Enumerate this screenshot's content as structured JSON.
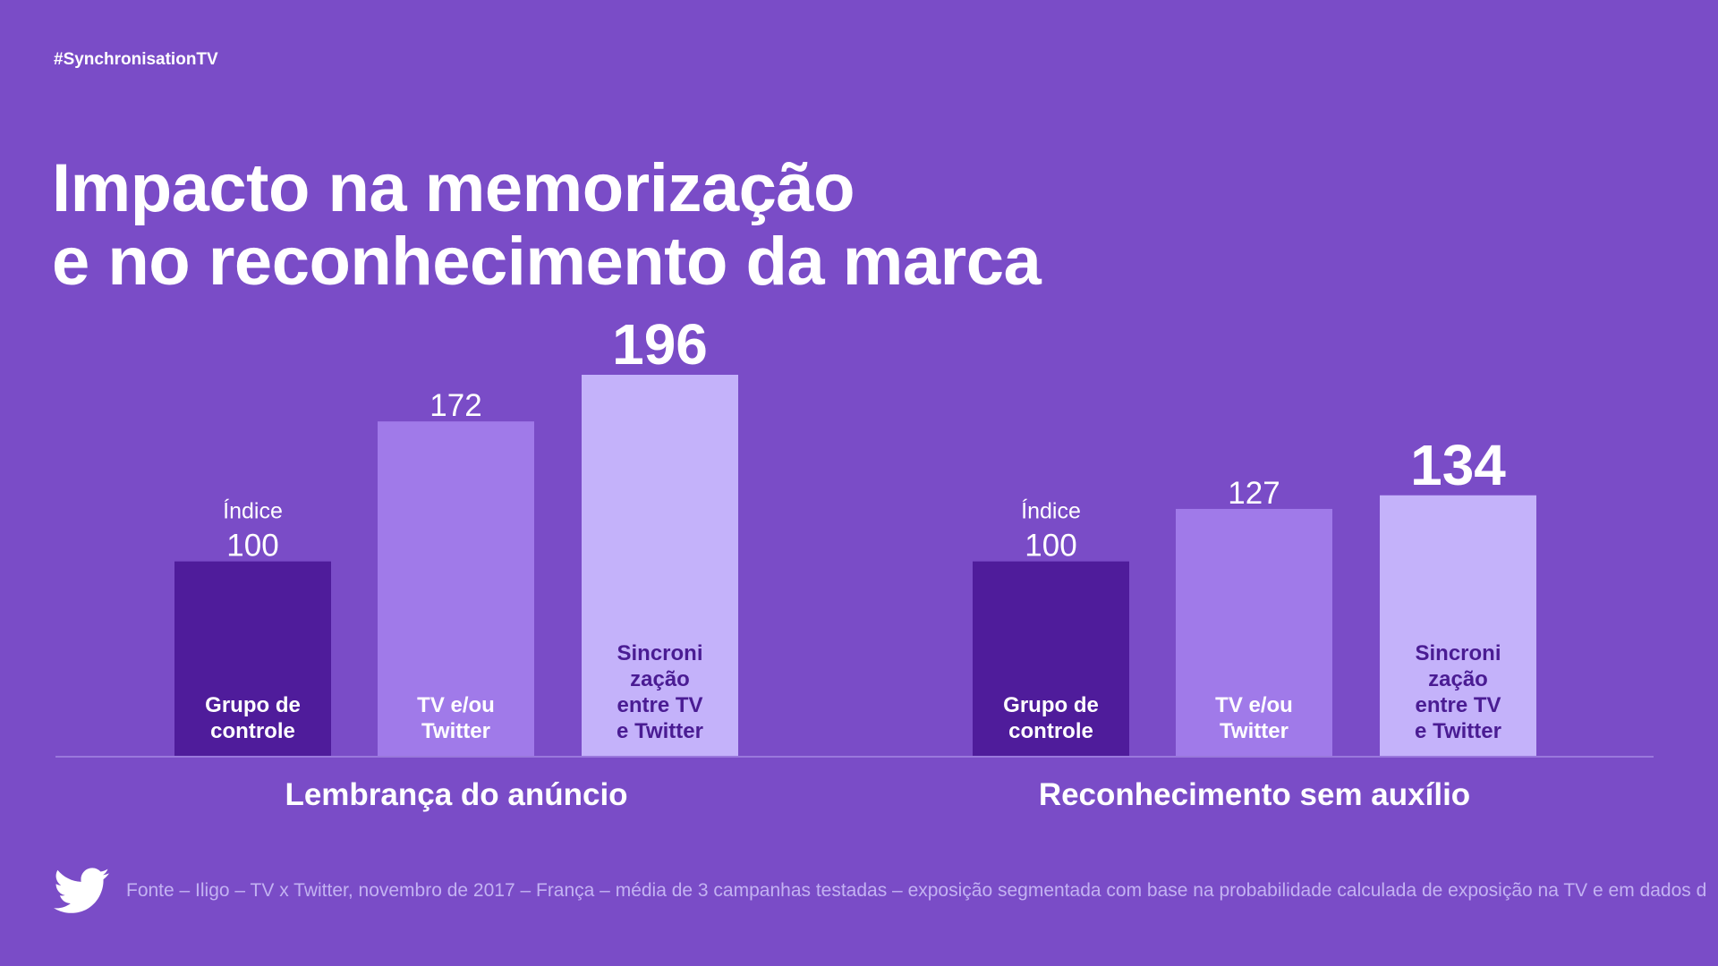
{
  "hashtag": "#SynchronisationTV",
  "title_line1": "Impacto na memorização",
  "title_line2": "e no reconhecimento da marca",
  "footer_text": "Fonte – Iligo – TV x Twitter, novembro de 2017 – França – média de 3 campanhas testadas – exposição segmentada com base na probabilidade calculada de exposição na TV e em dados d",
  "icons": {
    "footer": "twitter-bird-icon"
  },
  "colors": {
    "background": "#7a4cc7",
    "control_bar": "#4f1c9b",
    "tv_bar": "#a07ae9",
    "sync_bar": "#c4b2fa",
    "dark_text": "#4a1c93",
    "baseline": "#9a78dc",
    "footer_text": "#c3b2f2"
  },
  "chart_data": {
    "type": "bar",
    "index_label": "Índice",
    "ylim": [
      0,
      196
    ],
    "groups": [
      {
        "name": "Lembrança do anúncio",
        "bars": [
          {
            "label_lines": [
              "Grupo de",
              "controle"
            ],
            "value": 100,
            "value_label": "100"
          },
          {
            "label_lines": [
              "TV e/ou",
              "Twitter"
            ],
            "value": 172,
            "value_label": "172"
          },
          {
            "label_lines": [
              "Sincroni",
              "zação",
              "entre TV",
              "e Twitter"
            ],
            "value": 196,
            "value_label": "196"
          }
        ]
      },
      {
        "name": "Reconhecimento sem auxílio",
        "bars": [
          {
            "label_lines": [
              "Grupo de",
              "controle"
            ],
            "value": 100,
            "value_label": "100"
          },
          {
            "label_lines": [
              "TV e/ou",
              "Twitter"
            ],
            "value": 127,
            "value_label": "127"
          },
          {
            "label_lines": [
              "Sincroni",
              "zação",
              "entre TV",
              "e Twitter"
            ],
            "value": 134,
            "value_label": "134"
          }
        ]
      }
    ]
  }
}
